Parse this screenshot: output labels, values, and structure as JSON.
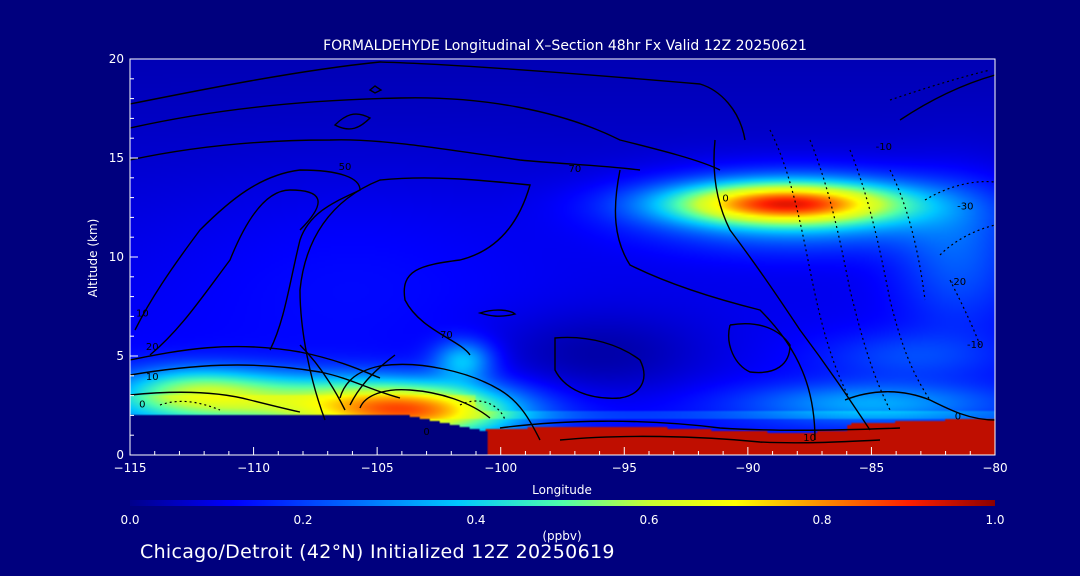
{
  "chart_data": {
    "type": "heatmap",
    "title": "FORMALDEHYDE Longitudinal X–Section 48hr  Fx Valid 12Z 20250621",
    "xlabel": "Longitude",
    "ylabel": "Altitude (km)",
    "xlim": [
      -115,
      -80
    ],
    "ylim": [
      0,
      20
    ],
    "x_ticks": [
      -115,
      -110,
      -105,
      -100,
      -95,
      -90,
      -85,
      -80
    ],
    "x_tick_labels": [
      "−115",
      "−110",
      "−105",
      "−100",
      "−95",
      "−90",
      "−85",
      "−80"
    ],
    "y_ticks": [
      0,
      5,
      10,
      15,
      20
    ],
    "y_tick_labels": [
      "0",
      "5",
      "10",
      "15",
      "20"
    ],
    "colorbar": {
      "min": 0.0,
      "max": 1.0,
      "unit": "(ppbv)",
      "ticks": [
        0.0,
        0.2,
        0.4,
        0.6,
        0.8,
        1.0
      ],
      "tick_labels": [
        "0.0",
        "0.2",
        "0.4",
        "0.6",
        "0.8",
        "1.0"
      ],
      "colors": [
        "#00008b",
        "#0000ff",
        "#0064ff",
        "#00c8ff",
        "#50ffaa",
        "#c8ff32",
        "#ffff00",
        "#ff8c00",
        "#ff1e00",
        "#8b0000"
      ]
    },
    "blobs": [
      {
        "lon": -103.5,
        "alt": 2.2,
        "r_lon": 4.0,
        "r_alt": 1.3,
        "value": 0.55
      },
      {
        "lon": -108.5,
        "alt": 2.8,
        "r_lon": 5.5,
        "r_alt": 1.3,
        "value": 0.3
      },
      {
        "lon": -112.5,
        "alt": 3.2,
        "r_lon": 3.0,
        "r_alt": 1.2,
        "value": 0.28
      },
      {
        "lon": -101.5,
        "alt": 4.8,
        "r_lon": 1.2,
        "r_alt": 1.0,
        "value": 0.22
      },
      {
        "lon": -88.5,
        "alt": 12.7,
        "r_lon": 4.5,
        "r_alt": 1.0,
        "value": 0.6
      },
      {
        "lon": -88.0,
        "alt": 12.4,
        "r_lon": 6.0,
        "r_alt": 1.9,
        "value": 0.25
      },
      {
        "lon": -81.5,
        "alt": 10.0,
        "r_lon": 2.5,
        "r_alt": 3.5,
        "value": 0.12
      },
      {
        "lon": -85.0,
        "alt": 2.6,
        "r_lon": 5.0,
        "r_alt": 1.0,
        "value": 0.18
      },
      {
        "lon": -83.5,
        "alt": 5.0,
        "r_lon": 3.5,
        "r_alt": 1.2,
        "value": 0.08
      },
      {
        "lon": -96.0,
        "alt": 5.0,
        "r_lon": 4.5,
        "r_alt": 2.2,
        "value": -0.08
      },
      {
        "lon": -106.0,
        "alt": 10.0,
        "r_lon": 8.0,
        "r_alt": 4.5,
        "value": 0.03
      }
    ],
    "surface_layer": {
      "lon_from": -101.0,
      "top_alt": 1.3,
      "value": 0.95
    },
    "contour_labels": [
      {
        "text": "50",
        "lon": -106.3,
        "alt": 14.6
      },
      {
        "text": "70",
        "lon": -97.0,
        "alt": 14.5
      },
      {
        "text": "-10",
        "lon": -84.5,
        "alt": 15.6
      },
      {
        "text": "0",
        "lon": -90.9,
        "alt": 13.0
      },
      {
        "text": "-30",
        "lon": -81.2,
        "alt": 12.6
      },
      {
        "text": "-20",
        "lon": -81.5,
        "alt": 8.8
      },
      {
        "text": "-10",
        "lon": -80.8,
        "alt": 5.6
      },
      {
        "text": "10",
        "lon": -114.5,
        "alt": 7.2
      },
      {
        "text": "70",
        "lon": -102.2,
        "alt": 6.1
      },
      {
        "text": "20",
        "lon": -114.1,
        "alt": 5.5
      },
      {
        "text": "10",
        "lon": -114.1,
        "alt": 4.0
      },
      {
        "text": "0",
        "lon": -114.5,
        "alt": 2.6
      },
      {
        "text": "0",
        "lon": -103.0,
        "alt": 1.2
      },
      {
        "text": "0",
        "lon": -81.5,
        "alt": 2.0
      },
      {
        "text": "10",
        "lon": -87.5,
        "alt": 0.9
      }
    ]
  },
  "footer": "Chicago/Detroit (42°N) Initialized 12Z 20250619"
}
